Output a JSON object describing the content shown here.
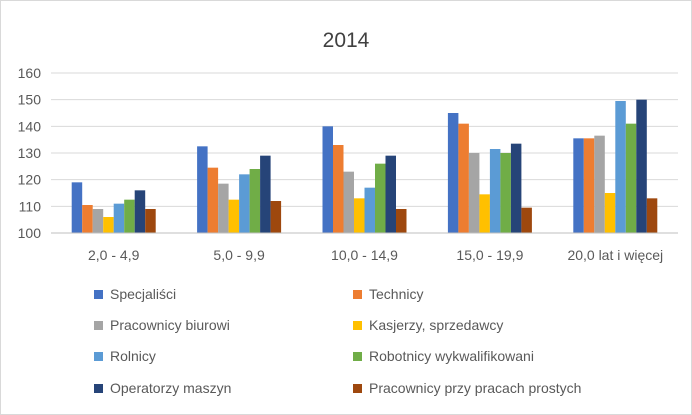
{
  "chart_data": {
    "type": "bar",
    "title": "2014",
    "xlabel": "",
    "ylabel": "",
    "ylim": [
      100,
      160
    ],
    "yticks": [
      100,
      110,
      120,
      130,
      140,
      150,
      160
    ],
    "grid": true,
    "legend_position": "bottom",
    "categories": [
      "2,0 - 4,9",
      "5,0 - 9,9",
      "10,0 - 14,9",
      "15,0 - 19,9",
      "20,0 lat i więcej"
    ],
    "series": [
      {
        "name": "Specjaliści",
        "color": "#4472C4",
        "values": [
          119,
          132.5,
          140,
          145,
          135.5
        ]
      },
      {
        "name": "Technicy",
        "color": "#ED7D31",
        "values": [
          110.5,
          124.5,
          133,
          141,
          135.5
        ]
      },
      {
        "name": "Pracownicy biurowi",
        "color": "#A5A5A5",
        "values": [
          109,
          118.5,
          123,
          130,
          136.5
        ]
      },
      {
        "name": "Kasjerzy, sprzedawcy",
        "color": "#FFC000",
        "values": [
          106,
          112.5,
          113,
          114.5,
          115
        ]
      },
      {
        "name": "Rolnicy",
        "color": "#5B9BD5",
        "values": [
          111,
          122,
          117,
          131.5,
          149.5
        ]
      },
      {
        "name": "Robotnicy wykwalifikowani",
        "color": "#70AD47",
        "values": [
          112.5,
          124,
          126,
          130,
          141
        ]
      },
      {
        "name": "Operatorzy maszyn",
        "color": "#264478",
        "values": [
          116,
          129,
          129,
          133.5,
          150
        ]
      },
      {
        "name": "Pracownicy przy pracach prostych",
        "color": "#9E480E",
        "values": [
          109,
          112,
          109,
          109.5,
          113
        ]
      }
    ]
  }
}
